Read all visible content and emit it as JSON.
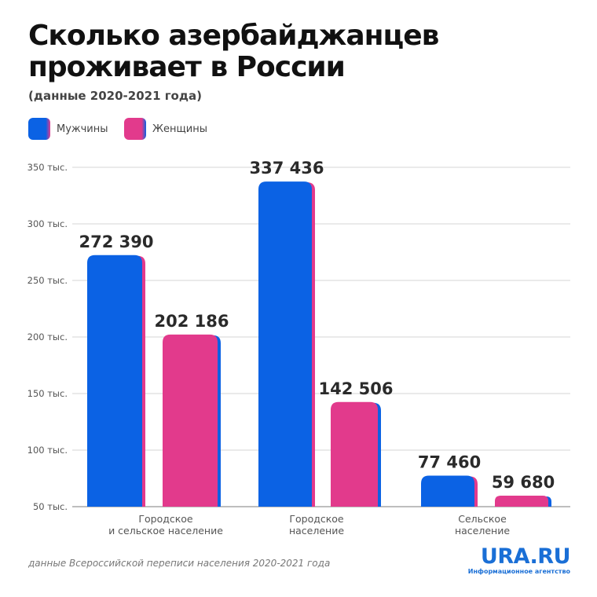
{
  "header": {
    "title_line1": "Сколько азербайджанцев",
    "title_line2": "проживает в России",
    "subtitle": "(данные 2020-2021 года)"
  },
  "colors": {
    "men": "#0b62e4",
    "women": "#e23a8c",
    "grid": "#dedede",
    "baseline": "#a9a9a9"
  },
  "chart_data": {
    "type": "bar",
    "title": "Сколько азербайджанцев проживает в России",
    "subtitle": "(данные 2020-2021 года)",
    "categories": [
      [
        "Городское",
        "и сельское население"
      ],
      [
        "Городское",
        "население"
      ],
      [
        "Сельское",
        "население"
      ]
    ],
    "series": [
      {
        "name": "Мужчины",
        "values": [
          272390,
          337436,
          77460
        ],
        "labels": [
          "272 390",
          "337 436",
          "77 460"
        ]
      },
      {
        "name": "Женщины",
        "values": [
          202186,
          142506,
          59680
        ],
        "labels": [
          "202 186",
          "142 506",
          "59 680"
        ]
      }
    ],
    "ylim": [
      50000,
      350000
    ],
    "yticks": [
      50000,
      100000,
      150000,
      200000,
      250000,
      300000,
      350000
    ],
    "ytick_labels": [
      "50 тыс.",
      "100 тыс.",
      "150 тыс.",
      "200 тыс.",
      "250 тыс.",
      "300 тыс.",
      "350 тыс."
    ],
    "grid": true,
    "legend_position": "top-left",
    "xlabel": "",
    "ylabel": ""
  },
  "footer": {
    "source": "данные Всероссийской переписи населения 2020-2021 года",
    "logo_main": "URA.RU",
    "logo_sub": "Информационное агентство"
  }
}
